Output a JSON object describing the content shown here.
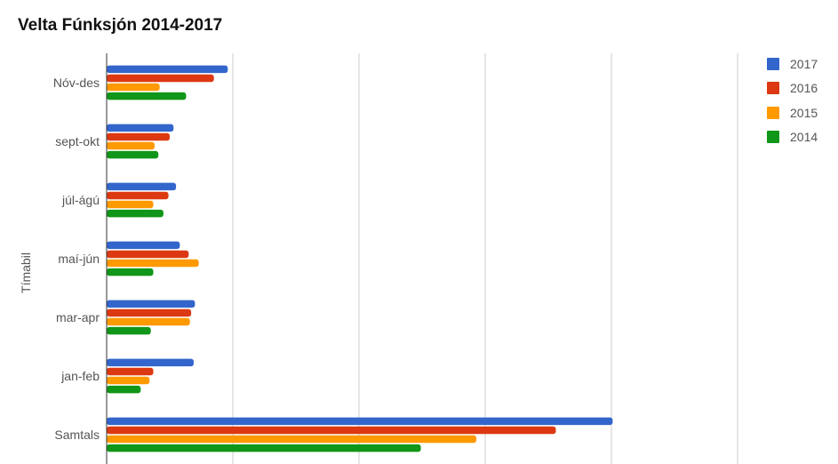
{
  "chart_data": {
    "type": "bar",
    "orientation": "horizontal",
    "title": "Velta Fúnksjón 2014-2017",
    "ylabel": "Tímabil",
    "xlabel": "",
    "categories": [
      "Nóv-des",
      "sept-okt",
      "júl-ágú",
      "maí-jún",
      "mar-apr",
      "jan-feb",
      "Samtals"
    ],
    "xlim": [
      0,
      5000
    ],
    "grid": true,
    "legend_position": "right",
    "series": [
      {
        "name": "2017",
        "color": "#3366cc",
        "values": [
          960,
          530,
          550,
          580,
          700,
          690,
          4010
        ]
      },
      {
        "name": "2016",
        "color": "#dc3912",
        "values": [
          850,
          500,
          490,
          650,
          670,
          370,
          3560
        ]
      },
      {
        "name": "2015",
        "color": "#ff9900",
        "values": [
          420,
          380,
          370,
          730,
          660,
          340,
          2930
        ]
      },
      {
        "name": "2014",
        "color": "#109618",
        "values": [
          630,
          410,
          450,
          370,
          350,
          270,
          2490
        ]
      }
    ]
  }
}
